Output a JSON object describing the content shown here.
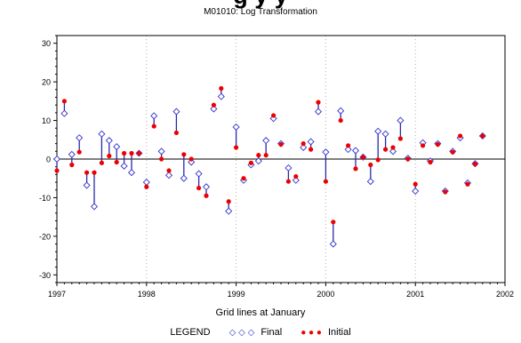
{
  "page": {
    "top_title_partial": "g              y   y",
    "subtitle": "M01010: Log Transformation"
  },
  "legend": {
    "title": "LEGEND",
    "final_label": "Final",
    "initial_label": "Initial",
    "final_glyph": "◇ ◇ ◇",
    "initial_glyph": "● ● ●"
  },
  "colors": {
    "final": "#3232cc",
    "initial": "#ee0000",
    "stem": "#2a2aa8",
    "axis": "#000000",
    "gridline": "#b0b0b0"
  },
  "chart_data": {
    "type": "scatter",
    "title": "M01010: Log Transformation",
    "xlabel": "Grid lines at January",
    "ylabel": "",
    "xlim": [
      1997,
      2002
    ],
    "ylim": [
      -32,
      32
    ],
    "xticks": [
      1997,
      1998,
      1999,
      2000,
      2001,
      2002
    ],
    "yticks": [
      -30,
      -20,
      -10,
      0,
      10,
      20,
      30
    ],
    "grid": "vertical dotted lines at January",
    "reference_line_y": 0,
    "x": [
      "1997-01",
      "1997-02",
      "1997-03",
      "1997-04",
      "1997-05",
      "1997-06",
      "1997-07",
      "1997-08",
      "1997-09",
      "1997-10",
      "1997-11",
      "1997-12",
      "1998-01",
      "1998-02",
      "1998-03",
      "1998-04",
      "1998-05",
      "1998-06",
      "1998-07",
      "1998-08",
      "1998-09",
      "1998-10",
      "1998-11",
      "1998-12",
      "1999-01",
      "1999-02",
      "1999-03",
      "1999-04",
      "1999-05",
      "1999-06",
      "1999-07",
      "1999-08",
      "1999-09",
      "1999-10",
      "1999-11",
      "1999-12",
      "2000-01",
      "2000-02",
      "2000-03",
      "2000-04",
      "2000-05",
      "2000-06",
      "2000-07",
      "2000-08",
      "2000-09",
      "2000-10",
      "2000-11",
      "2000-12",
      "2001-01",
      "2001-02",
      "2001-03",
      "2001-04",
      "2001-05",
      "2001-06",
      "2001-07",
      "2001-08",
      "2001-09",
      "2001-10"
    ],
    "series": [
      {
        "name": "Final",
        "marker": "open-diamond",
        "values": [
          0.0,
          11.8,
          1.2,
          5.5,
          -6.8,
          -12.3,
          6.5,
          4.8,
          3.2,
          -1.8,
          -3.5,
          1.5,
          -6.0,
          11.2,
          2.0,
          -4.2,
          12.3,
          -5.0,
          -0.8,
          -3.8,
          -7.2,
          13.0,
          16.2,
          -13.5,
          8.3,
          -5.5,
          -1.5,
          -0.5,
          4.8,
          10.5,
          4.0,
          -2.3,
          -5.5,
          3.0,
          4.5,
          12.3,
          1.8,
          -22.0,
          12.5,
          2.5,
          2.2,
          0.5,
          -5.8,
          7.2,
          6.5,
          2.0,
          10.0,
          0.2,
          -8.3,
          4.2,
          -0.5,
          4.0,
          -8.3,
          2.0,
          5.5,
          -6.2,
          -1.2,
          6.0
        ]
      },
      {
        "name": "Initial",
        "marker": "filled-circle",
        "values": [
          -3.0,
          15.0,
          -1.5,
          1.8,
          -3.5,
          -3.5,
          -1.0,
          0.8,
          -0.8,
          1.5,
          1.5,
          1.5,
          -7.2,
          8.5,
          0.0,
          -3.0,
          6.8,
          1.2,
          0.0,
          -7.5,
          -9.5,
          14.0,
          18.3,
          -11.0,
          3.0,
          -5.0,
          -1.0,
          1.0,
          1.0,
          11.3,
          3.8,
          -5.8,
          -4.5,
          4.0,
          2.5,
          14.7,
          -5.8,
          -16.3,
          10.0,
          3.5,
          -2.5,
          0.5,
          -1.5,
          -0.2,
          2.5,
          3.0,
          5.3,
          0.0,
          -6.5,
          3.5,
          -0.8,
          3.8,
          -8.5,
          1.8,
          6.0,
          -6.5,
          -1.3,
          6.0
        ]
      }
    ]
  }
}
